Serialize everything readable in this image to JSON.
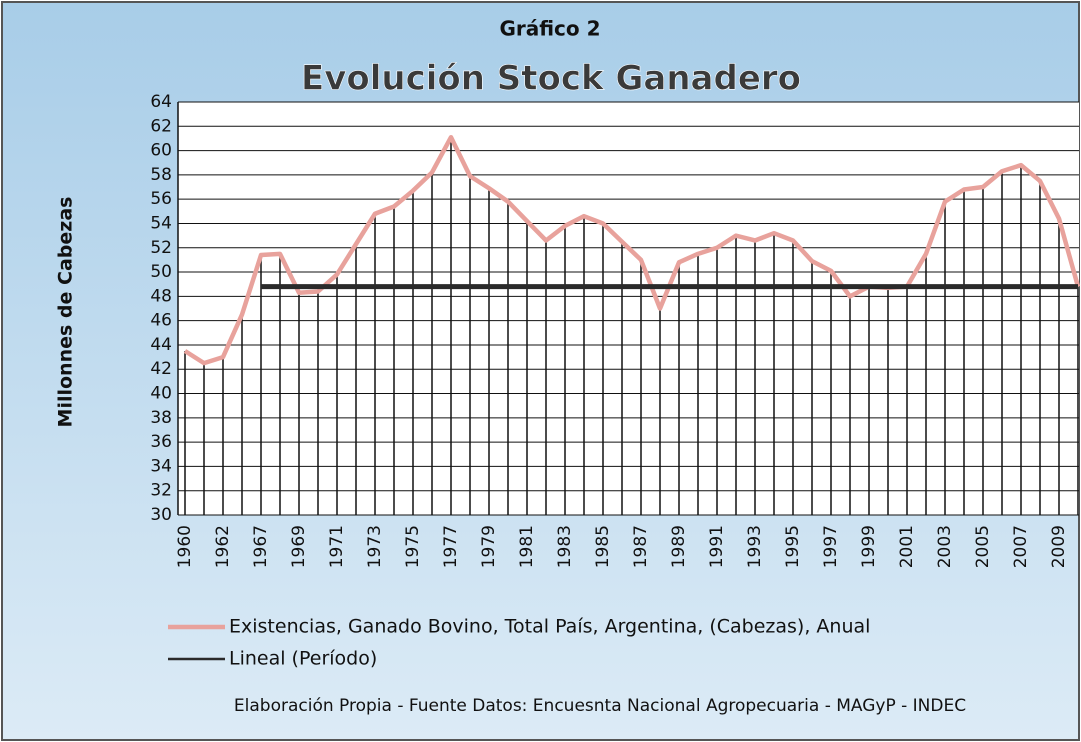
{
  "chart_data": {
    "type": "line",
    "supertitle": "Gráfico 2",
    "title": "Evolución Stock Ganadero",
    "y_label": "Millonnes  de Cabezas",
    "footer": "Elaboración Propia  -  Fuente Datos: Encuesnta Nacional Agropecuaria - MAGyP - INDEC",
    "categories": [
      "1960",
      null,
      "1962",
      null,
      "1967",
      null,
      "1969",
      null,
      "1971",
      null,
      "1973",
      null,
      "1975",
      null,
      "1977",
      null,
      "1979",
      null,
      "1981",
      null,
      "1983",
      null,
      "1985",
      null,
      "1987",
      null,
      "1989",
      null,
      "1991",
      null,
      "1993",
      null,
      "1995",
      null,
      "1997",
      null,
      "1999",
      null,
      "2001",
      null,
      "2003",
      null,
      "2005",
      null,
      "2007",
      null,
      "2009",
      null
    ],
    "series": [
      {
        "name": "Existencias, Ganado Bovino, Total País, Argentina, (Cabezas), Anual",
        "color": "#e8a29c",
        "values": [
          43.5,
          42.5,
          43,
          46.5,
          51.4,
          51.5,
          48.3,
          48.4,
          49.8,
          52.3,
          54.8,
          55.4,
          56.7,
          58.2,
          61.1,
          57.9,
          56.9,
          55.8,
          54.2,
          52.6,
          53.8,
          54.6,
          54.0,
          52.5,
          51.0,
          47.0,
          50.8,
          51.5,
          52.0,
          53.0,
          52.6,
          53.2,
          52.6,
          50.9,
          50.1,
          48.0,
          48.8,
          48.7,
          48.8,
          51.5,
          55.8,
          56.8,
          57.0,
          58.3,
          58.8,
          57.5,
          54.4,
          48.8
        ]
      },
      {
        "name": "Lineal (Período)",
        "color": "#2a2a2a",
        "values": [
          null,
          null,
          null,
          null,
          48.8,
          48.8,
          48.8,
          48.8,
          48.8,
          48.8,
          48.8,
          48.8,
          48.8,
          48.8,
          48.8,
          48.8,
          48.8,
          48.8,
          48.8,
          48.8,
          48.8,
          48.8,
          48.8,
          48.8,
          48.8,
          48.8,
          48.8,
          48.8,
          48.8,
          48.8,
          48.8,
          48.8,
          48.8,
          48.8,
          48.8,
          48.8,
          48.8,
          48.8,
          48.8,
          48.8,
          48.8,
          48.8,
          48.8,
          48.8,
          48.8,
          48.8,
          48.8,
          48.8
        ]
      }
    ],
    "ylim": [
      30,
      64
    ],
    "yticks": [
      30,
      32,
      34,
      36,
      38,
      40,
      42,
      44,
      46,
      48,
      50,
      52,
      54,
      56,
      58,
      60,
      62,
      64
    ],
    "grid": true,
    "drop_lines": true
  }
}
